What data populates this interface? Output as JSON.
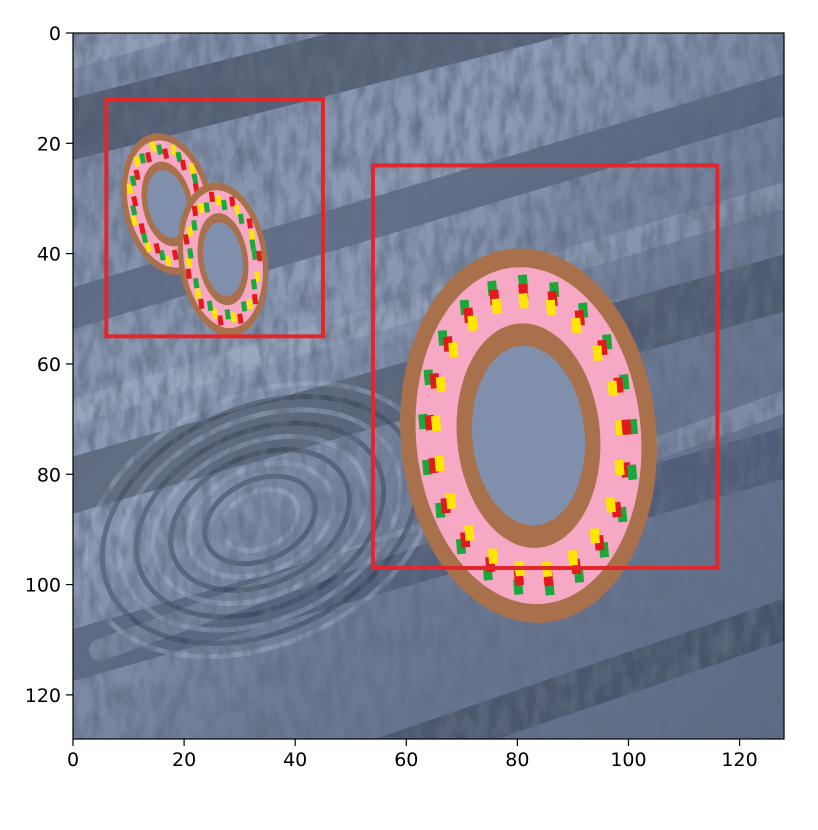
{
  "image": {
    "description_colors": {
      "sky_dark": "#2d3547",
      "sky_mid": "#5a6a86",
      "sky_light": "#9aa8c0",
      "box_color": "#e3262b",
      "dough": "#a8714c",
      "icing": "#f7a8c4"
    }
  },
  "axes": {
    "x_ticks": [
      "0",
      "20",
      "40",
      "60",
      "80",
      "100",
      "120"
    ],
    "y_ticks": [
      "0",
      "20",
      "40",
      "60",
      "80",
      "100",
      "120"
    ]
  },
  "chart_data": {
    "type": "image",
    "image_size": [
      128,
      128
    ],
    "xlim": [
      0,
      128
    ],
    "ylim": [
      128,
      0
    ],
    "boxes": [
      {
        "x0": 6,
        "y0": 12,
        "x1": 45,
        "y1": 55
      },
      {
        "x0": 54,
        "y0": 24,
        "x1": 116,
        "y1": 97
      }
    ],
    "donuts": [
      {
        "cx": 17,
        "cy": 31,
        "rx": 8,
        "ry": 13,
        "rot": -12
      },
      {
        "cx": 27,
        "cy": 41,
        "rx": 8,
        "ry": 14,
        "rot": -8
      },
      {
        "cx": 82,
        "cy": 73,
        "rx": 23,
        "ry": 34,
        "rot": -5
      }
    ]
  }
}
